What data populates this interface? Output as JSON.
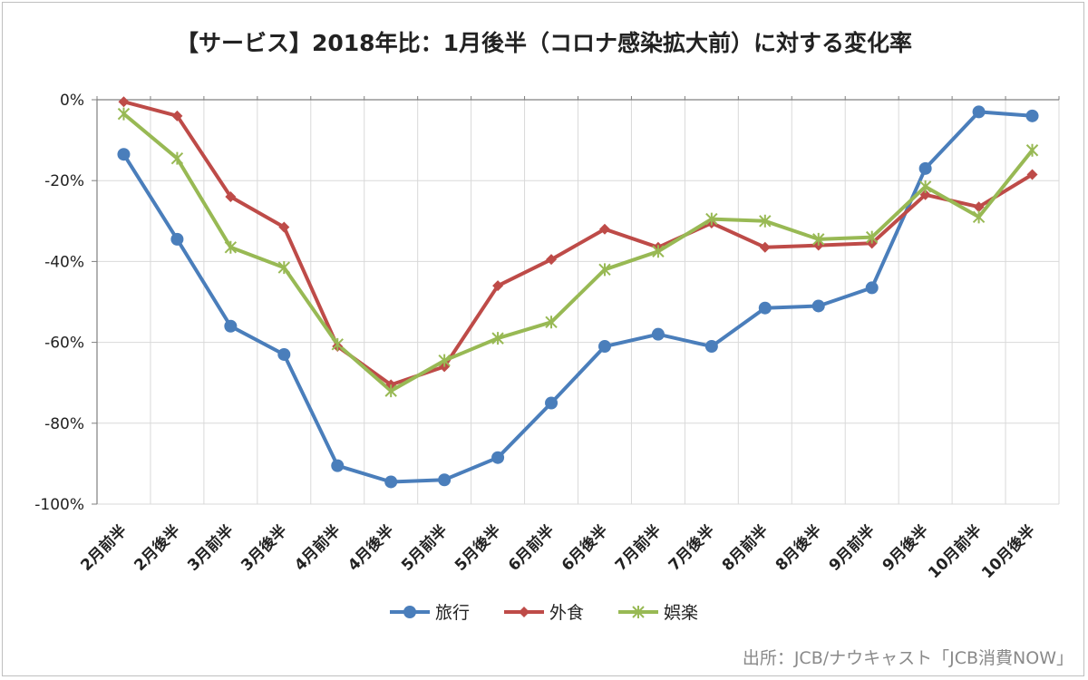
{
  "chart_data": {
    "type": "line",
    "title": "【サービス】2018年比：1月後半（コロナ感染拡大前）に対する変化率",
    "source": "出所：JCB/ナウキャスト「JCB消費NOW」",
    "categories": [
      "2月前半",
      "2月後半",
      "3月前半",
      "3月後半",
      "4月前半",
      "4月後半",
      "5月前半",
      "5月後半",
      "6月前半",
      "6月後半",
      "7月前半",
      "7月後半",
      "8月前半",
      "8月後半",
      "9月前半",
      "9月後半",
      "10月前半",
      "10月後半"
    ],
    "ylim": [
      -100,
      0
    ],
    "yticks": [
      0,
      -20,
      -40,
      -60,
      -80,
      -100
    ],
    "ytick_labels": [
      "0%",
      "-20%",
      "-40%",
      "-60%",
      "-80%",
      "-100%"
    ],
    "grid": true,
    "legend_position": "bottom",
    "series": [
      {
        "name": "旅行",
        "color": "#4a7ebb",
        "marker": "circle",
        "values": [
          -13.5,
          -34.5,
          -56,
          -63,
          -90.5,
          -94.5,
          -94,
          -88.5,
          -75,
          -61,
          -58,
          -61,
          -51.5,
          -51,
          -46.5,
          -17,
          -3,
          -4
        ]
      },
      {
        "name": "外食",
        "color": "#be4b48",
        "marker": "diamond",
        "values": [
          -0.5,
          -4,
          -24,
          -31.5,
          -61,
          -70.5,
          -66,
          -46,
          -39.5,
          -32,
          -36.5,
          -30.5,
          -36.5,
          -36,
          -35.5,
          -23.5,
          -26.5,
          -18.5
        ]
      },
      {
        "name": "娯楽",
        "color": "#98b954",
        "marker": "star",
        "values": [
          -3.5,
          -14.5,
          -36.5,
          -41.5,
          -60.5,
          -72,
          -64.5,
          -59,
          -55,
          -42,
          -37.5,
          -29.5,
          -30,
          -34.5,
          -34,
          -21.5,
          -29,
          -12.5
        ]
      }
    ]
  }
}
